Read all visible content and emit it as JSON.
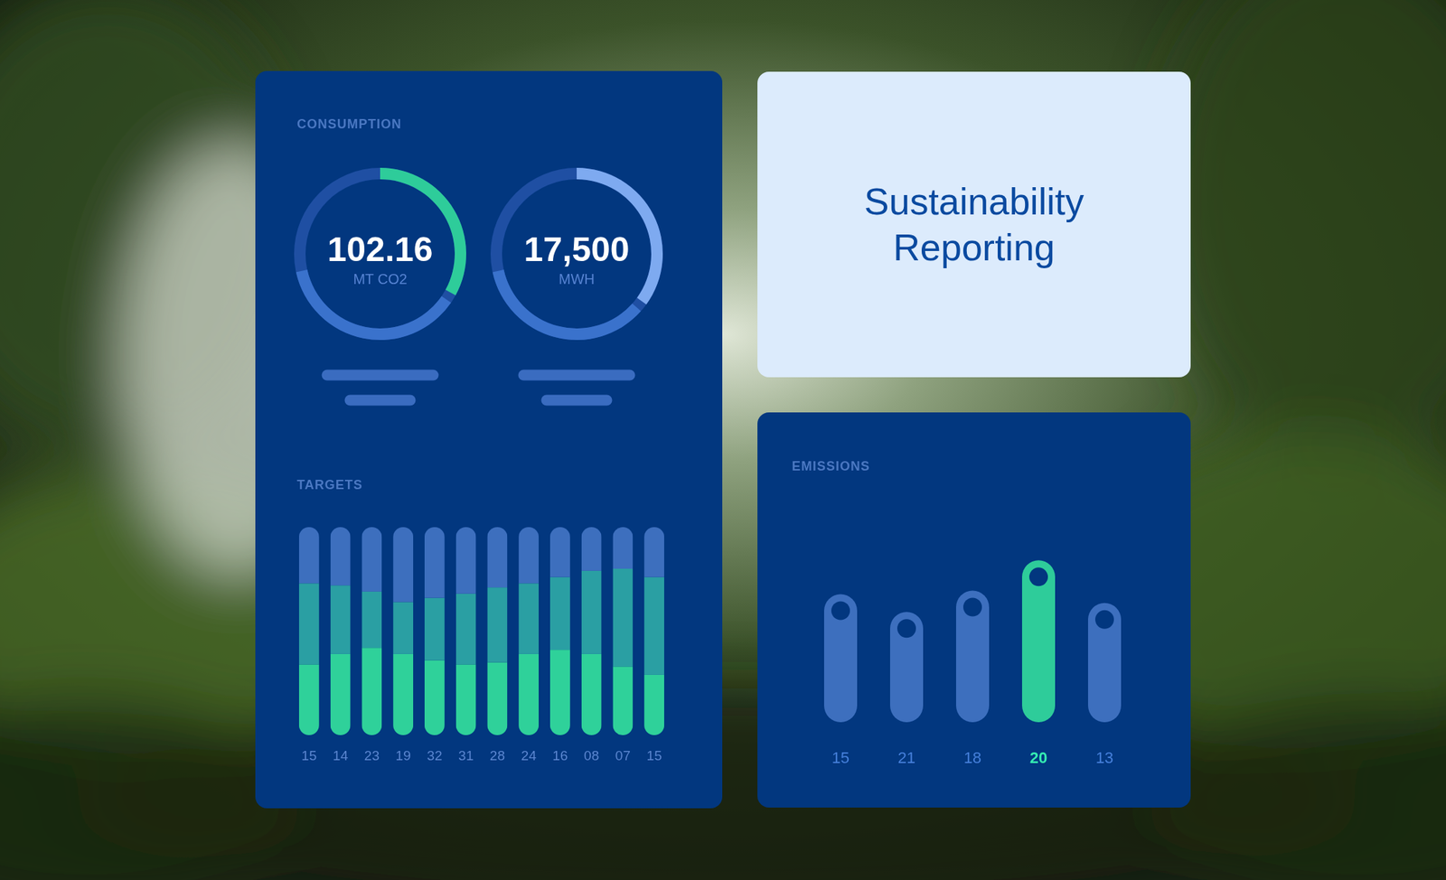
{
  "title": "Sustainability Reporting",
  "consumption": {
    "heading": "CONSUMPTION",
    "gauges": [
      {
        "value": "102.16",
        "unit": "MT CO2",
        "segments": [
          33,
          37
        ],
        "colors": [
          "#2ecc9a",
          "#3a72cc"
        ]
      },
      {
        "value": "17,500",
        "unit": "MWH",
        "segments": [
          35,
          35
        ],
        "colors": [
          "#7eaaf0",
          "#3a72cc"
        ]
      }
    ]
  },
  "chart_data": [
    {
      "type": "bar",
      "title": "TARGETS",
      "categories": [
        "15",
        "14",
        "23",
        "19",
        "32",
        "31",
        "28",
        "24",
        "16",
        "08",
        "07",
        "15"
      ],
      "stacked": true,
      "tick_labels": "x",
      "ylim": [
        0,
        100
      ],
      "series": [
        {
          "color": "#2fd19a",
          "values": [
            34,
            39,
            42,
            39,
            36,
            34,
            35,
            39,
            41,
            39,
            33,
            29
          ]
        },
        {
          "color": "#2a9fa3",
          "values": [
            39,
            33,
            27,
            25,
            30,
            34,
            36,
            34,
            35,
            40,
            47,
            47
          ]
        },
        {
          "color": "#3d6fbe",
          "values": [
            27,
            28,
            31,
            36,
            34,
            32,
            29,
            27,
            24,
            21,
            20,
            24
          ]
        }
      ]
    },
    {
      "type": "bar",
      "title": "EMISSIONS",
      "categories": [
        "15",
        "21",
        "18",
        "20",
        "13"
      ],
      "values": [
        72,
        62,
        74,
        91,
        67
      ],
      "colors": [
        "#3d6fbe",
        "#3d6fbe",
        "#3d6fbe",
        "#2ecc9a",
        "#3d6fbe"
      ],
      "marker": "circle",
      "tick_labels": "x",
      "ylim": [
        0,
        100
      ]
    }
  ]
}
